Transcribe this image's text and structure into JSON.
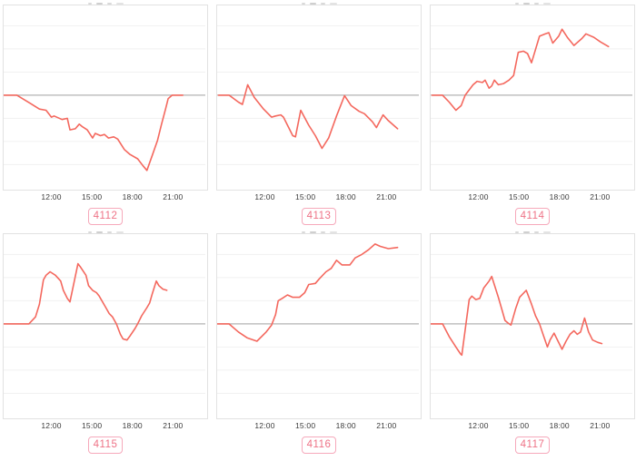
{
  "colors": {
    "line": "#f4685e",
    "zero_line": "#b3b3b3",
    "gridline": "#f1f1f1",
    "panel_border": "#e2e2e2",
    "tick_text": "#3b3b3b",
    "badge_text": "#ee7286",
    "badge_border": "#f6a9bb"
  },
  "chart_data": {
    "type": "line",
    "layout": "2x3 small multiples, shared style",
    "x_axis": {
      "ticks": [
        "12:00",
        "15:00",
        "18:00",
        "21:00"
      ],
      "tick_hours": [
        12,
        15,
        18,
        21
      ],
      "range_hours": [
        8.4,
        23.6
      ],
      "grid": false
    },
    "y_axis": {
      "labels_visible": false,
      "zero_baseline": true,
      "gridline_step_units": 1,
      "ylim": [
        -4,
        4
      ],
      "grid": true
    },
    "legend": "none",
    "charts": [
      {
        "label": "4112",
        "points": [
          [
            8.4,
            0
          ],
          [
            9.4,
            0
          ],
          [
            10.4,
            -0.35
          ],
          [
            11.1,
            -0.6
          ],
          [
            11.6,
            -0.65
          ],
          [
            12.0,
            -0.95
          ],
          [
            12.2,
            -0.9
          ],
          [
            12.8,
            -1.05
          ],
          [
            13.2,
            -1.0
          ],
          [
            13.4,
            -1.5
          ],
          [
            13.8,
            -1.45
          ],
          [
            14.1,
            -1.25
          ],
          [
            14.3,
            -1.35
          ],
          [
            14.7,
            -1.5
          ],
          [
            15.1,
            -1.85
          ],
          [
            15.3,
            -1.65
          ],
          [
            15.7,
            -1.75
          ],
          [
            16.0,
            -1.7
          ],
          [
            16.3,
            -1.85
          ],
          [
            16.7,
            -1.8
          ],
          [
            17.0,
            -1.9
          ],
          [
            17.5,
            -2.35
          ],
          [
            17.9,
            -2.55
          ],
          [
            18.5,
            -2.75
          ],
          [
            18.9,
            -3.05
          ],
          [
            19.2,
            -3.25
          ],
          [
            19.6,
            -2.6
          ],
          [
            20.0,
            -1.95
          ],
          [
            20.3,
            -1.25
          ],
          [
            20.6,
            -0.6
          ],
          [
            20.8,
            -0.15
          ],
          [
            21.1,
            0
          ],
          [
            21.9,
            0
          ]
        ]
      },
      {
        "label": "4113",
        "points": [
          [
            8.5,
            0
          ],
          [
            9.3,
            0
          ],
          [
            10.0,
            -0.3
          ],
          [
            10.3,
            -0.4
          ],
          [
            10.7,
            0.45
          ],
          [
            11.2,
            -0.1
          ],
          [
            11.9,
            -0.6
          ],
          [
            12.5,
            -0.95
          ],
          [
            12.8,
            -0.9
          ],
          [
            13.2,
            -0.85
          ],
          [
            13.4,
            -0.95
          ],
          [
            14.1,
            -1.75
          ],
          [
            14.3,
            -1.8
          ],
          [
            14.7,
            -0.65
          ],
          [
            15.3,
            -1.3
          ],
          [
            15.8,
            -1.75
          ],
          [
            16.3,
            -2.3
          ],
          [
            16.8,
            -1.85
          ],
          [
            17.4,
            -0.9
          ],
          [
            18.0,
            -0.02
          ],
          [
            18.5,
            -0.45
          ],
          [
            19.1,
            -0.7
          ],
          [
            19.5,
            -0.8
          ],
          [
            20.1,
            -1.15
          ],
          [
            20.4,
            -1.4
          ],
          [
            20.9,
            -0.85
          ],
          [
            21.3,
            -1.1
          ],
          [
            22.0,
            -1.45
          ]
        ]
      },
      {
        "label": "4114",
        "points": [
          [
            8.5,
            0
          ],
          [
            9.3,
            0
          ],
          [
            9.8,
            -0.3
          ],
          [
            10.3,
            -0.65
          ],
          [
            10.7,
            -0.45
          ],
          [
            11.0,
            0
          ],
          [
            11.6,
            0.45
          ],
          [
            11.9,
            0.6
          ],
          [
            12.3,
            0.55
          ],
          [
            12.5,
            0.65
          ],
          [
            12.8,
            0.3
          ],
          [
            13.0,
            0.4
          ],
          [
            13.2,
            0.65
          ],
          [
            13.5,
            0.45
          ],
          [
            13.9,
            0.5
          ],
          [
            14.3,
            0.65
          ],
          [
            14.65,
            0.85
          ],
          [
            15.0,
            1.85
          ],
          [
            15.4,
            1.9
          ],
          [
            15.7,
            1.8
          ],
          [
            16.0,
            1.4
          ],
          [
            16.6,
            2.55
          ],
          [
            17.05,
            2.65
          ],
          [
            17.3,
            2.7
          ],
          [
            17.6,
            2.25
          ],
          [
            18.05,
            2.55
          ],
          [
            18.3,
            2.85
          ],
          [
            18.7,
            2.5
          ],
          [
            19.2,
            2.15
          ],
          [
            19.8,
            2.45
          ],
          [
            20.1,
            2.65
          ],
          [
            20.7,
            2.5
          ],
          [
            21.2,
            2.3
          ],
          [
            21.8,
            2.1
          ]
        ]
      },
      {
        "label": "4115",
        "points": [
          [
            8.4,
            0
          ],
          [
            10.3,
            0
          ],
          [
            10.8,
            0.3
          ],
          [
            11.1,
            0.85
          ],
          [
            11.4,
            1.9
          ],
          [
            11.6,
            2.1
          ],
          [
            11.9,
            2.25
          ],
          [
            12.3,
            2.1
          ],
          [
            12.7,
            1.85
          ],
          [
            12.9,
            1.45
          ],
          [
            13.2,
            1.1
          ],
          [
            13.4,
            0.95
          ],
          [
            14.0,
            2.6
          ],
          [
            14.2,
            2.45
          ],
          [
            14.6,
            2.1
          ],
          [
            14.8,
            1.65
          ],
          [
            15.1,
            1.45
          ],
          [
            15.4,
            1.35
          ],
          [
            15.6,
            1.2
          ],
          [
            16.1,
            0.7
          ],
          [
            16.35,
            0.45
          ],
          [
            16.6,
            0.3
          ],
          [
            16.9,
            0
          ],
          [
            17.2,
            -0.45
          ],
          [
            17.4,
            -0.65
          ],
          [
            17.7,
            -0.7
          ],
          [
            17.95,
            -0.5
          ],
          [
            18.3,
            -0.2
          ],
          [
            18.5,
            0
          ],
          [
            18.8,
            0.35
          ],
          [
            19.2,
            0.7
          ],
          [
            19.4,
            0.9
          ],
          [
            19.6,
            1.3
          ],
          [
            19.9,
            1.85
          ],
          [
            20.1,
            1.65
          ],
          [
            20.4,
            1.5
          ],
          [
            20.7,
            1.45
          ]
        ]
      },
      {
        "label": "4116",
        "points": [
          [
            8.4,
            0
          ],
          [
            9.3,
            0
          ],
          [
            10.0,
            -0.35
          ],
          [
            10.65,
            -0.6
          ],
          [
            11.4,
            -0.75
          ],
          [
            12.1,
            -0.35
          ],
          [
            12.5,
            -0.05
          ],
          [
            12.8,
            0.4
          ],
          [
            13.0,
            1.0
          ],
          [
            13.3,
            1.1
          ],
          [
            13.7,
            1.25
          ],
          [
            14.1,
            1.15
          ],
          [
            14.6,
            1.15
          ],
          [
            15.0,
            1.35
          ],
          [
            15.3,
            1.7
          ],
          [
            15.8,
            1.75
          ],
          [
            16.1,
            1.95
          ],
          [
            16.6,
            2.25
          ],
          [
            17.0,
            2.4
          ],
          [
            17.4,
            2.75
          ],
          [
            17.8,
            2.55
          ],
          [
            18.4,
            2.55
          ],
          [
            18.8,
            2.85
          ],
          [
            19.3,
            3.0
          ],
          [
            19.8,
            3.2
          ],
          [
            20.3,
            3.45
          ],
          [
            20.7,
            3.35
          ],
          [
            21.3,
            3.25
          ],
          [
            22.0,
            3.3
          ]
        ]
      },
      {
        "label": "4117",
        "points": [
          [
            8.4,
            0
          ],
          [
            9.3,
            0
          ],
          [
            9.8,
            -0.55
          ],
          [
            10.3,
            -1.0
          ],
          [
            10.65,
            -1.3
          ],
          [
            10.75,
            -1.35
          ],
          [
            11.3,
            1.05
          ],
          [
            11.5,
            1.2
          ],
          [
            11.8,
            1.05
          ],
          [
            12.1,
            1.1
          ],
          [
            12.4,
            1.55
          ],
          [
            12.8,
            1.85
          ],
          [
            13.0,
            2.05
          ],
          [
            13.5,
            1.15
          ],
          [
            13.8,
            0.55
          ],
          [
            14.0,
            0.15
          ],
          [
            14.2,
            0.05
          ],
          [
            14.45,
            -0.05
          ],
          [
            14.8,
            0.65
          ],
          [
            15.1,
            1.15
          ],
          [
            15.6,
            1.45
          ],
          [
            16.0,
            0.85
          ],
          [
            16.3,
            0.35
          ],
          [
            16.6,
            0
          ],
          [
            16.9,
            -0.5
          ],
          [
            17.2,
            -1.0
          ],
          [
            17.4,
            -0.7
          ],
          [
            17.7,
            -0.4
          ],
          [
            18.0,
            -0.75
          ],
          [
            18.3,
            -1.1
          ],
          [
            18.6,
            -0.75
          ],
          [
            18.9,
            -0.45
          ],
          [
            19.2,
            -0.3
          ],
          [
            19.45,
            -0.45
          ],
          [
            19.7,
            -0.35
          ],
          [
            20.0,
            0.25
          ],
          [
            20.3,
            -0.35
          ],
          [
            20.6,
            -0.7
          ],
          [
            21.0,
            -0.8
          ],
          [
            21.3,
            -0.85
          ]
        ]
      }
    ]
  }
}
